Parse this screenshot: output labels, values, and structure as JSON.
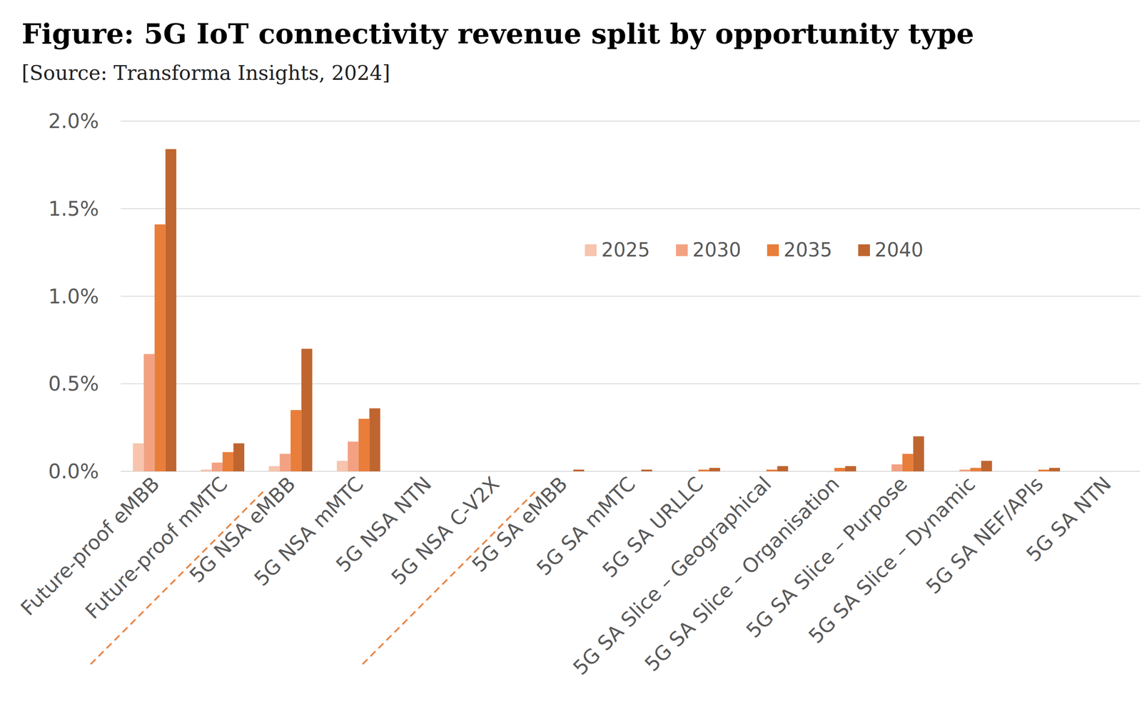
{
  "chart_data": {
    "type": "bar",
    "title": "Figure: 5G IoT connectivity revenue split by opportunity type",
    "subtitle": "[Source: Transforma Insights, 2024]",
    "categories": [
      "Future-proof eMBB",
      "Future-proof mMTC",
      "5G NSA eMBB",
      "5G NSA mMTC",
      "5G NSA NTN",
      "5G NSA C-V2X",
      "5G SA eMBB",
      "5G SA mMTC",
      "5G SA URLLC",
      "5G SA Slice – Geographical",
      "5G SA Slice – Organisation",
      "5G SA Slice – Purpose",
      "5G SA Slice – Dynamic",
      "5G SA NEF/APIs",
      "5G SA NTN"
    ],
    "series": [
      {
        "name": "2025",
        "color": "#f7c4ad",
        "values": [
          0.16,
          0.01,
          0.03,
          0.06,
          0,
          0,
          0,
          0,
          0,
          0,
          0,
          0,
          0,
          0,
          0
        ]
      },
      {
        "name": "2030",
        "color": "#f2a283",
        "values": [
          0.67,
          0.05,
          0.1,
          0.17,
          0,
          0,
          0,
          0,
          0,
          0,
          0,
          0.04,
          0.01,
          0,
          0
        ]
      },
      {
        "name": "2035",
        "color": "#e97d3a",
        "values": [
          1.41,
          0.11,
          0.35,
          0.3,
          0,
          0,
          0,
          0,
          0.01,
          0.01,
          0.02,
          0.1,
          0.02,
          0.01,
          0
        ]
      },
      {
        "name": "2040",
        "color": "#bf6530",
        "values": [
          1.84,
          0.16,
          0.7,
          0.36,
          0,
          0,
          0.01,
          0.01,
          0.02,
          0.03,
          0.03,
          0.2,
          0.06,
          0.02,
          0
        ]
      }
    ],
    "ylim": [
      0,
      2
    ],
    "yticks": [
      {
        "value": 0,
        "label": "0.0%"
      },
      {
        "value": 0.5,
        "label": "0.5%"
      },
      {
        "value": 1,
        "label": "1.0%"
      },
      {
        "value": 1.5,
        "label": "1.5%"
      },
      {
        "value": 2,
        "label": "2.0%"
      }
    ],
    "grid": true,
    "legend": "top"
  }
}
